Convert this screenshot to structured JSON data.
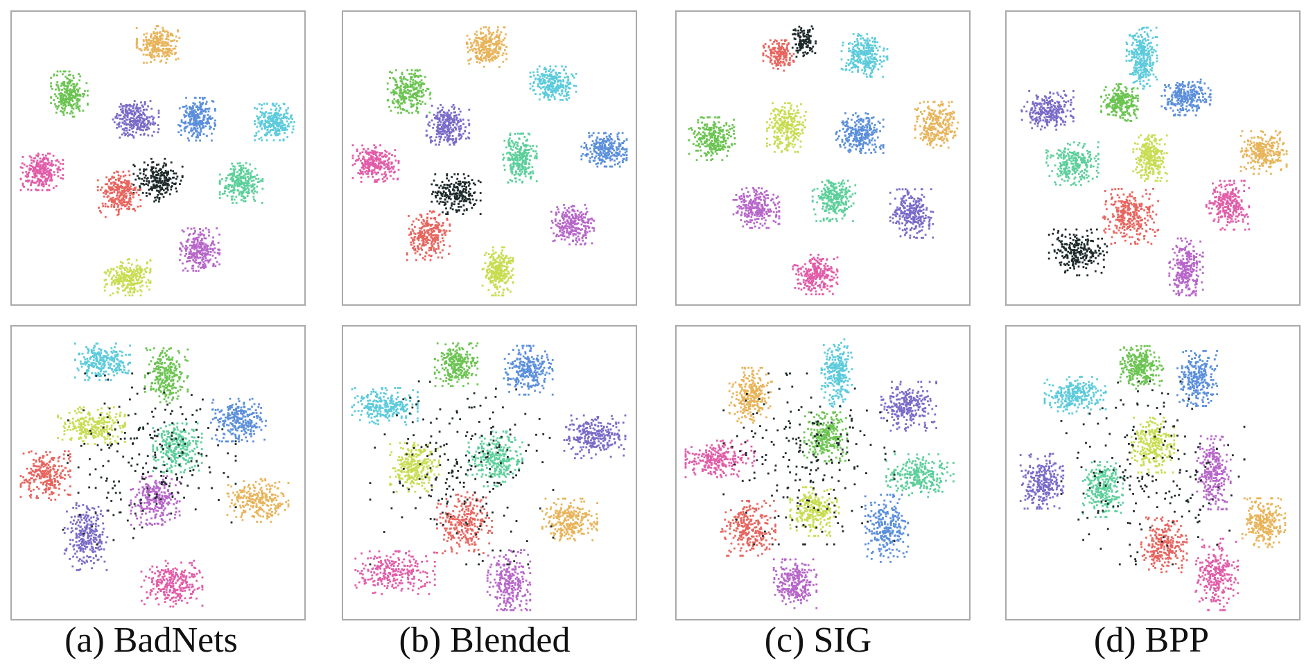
{
  "figure": {
    "captions": [
      "(a) BadNets",
      "(b) Blended",
      "(c) SIG",
      "(d) BPP"
    ]
  },
  "chart_data": {
    "type": "scatter",
    "description_rows": [
      "top",
      "bottom"
    ],
    "palette": {
      "red": "#e8655f",
      "orange": "#e8b45a",
      "lime": "#c8dd52",
      "green": "#6cc452",
      "teal": "#5dcf9b",
      "cyan": "#5ccbdb",
      "blue": "#5b8fdb",
      "purple": "#7a6bc8",
      "violet": "#b766c9",
      "pink": "#e15ca8",
      "black": "#1f2a2a"
    },
    "panels": [
      {
        "name": "badnets-top",
        "col": 0,
        "row": 0,
        "xlim": [
          0,
          100
        ],
        "ylim": [
          0,
          100
        ],
        "clusters": [
          {
            "color": "orange",
            "cx": 50,
            "cy": 91,
            "rx": 7,
            "ry": 6,
            "n": 260
          },
          {
            "color": "green",
            "cx": 18,
            "cy": 73,
            "rx": 6,
            "ry": 7.5,
            "n": 260
          },
          {
            "color": "purple",
            "cx": 42,
            "cy": 64,
            "rx": 7.5,
            "ry": 6,
            "n": 260
          },
          {
            "color": "blue",
            "cx": 64,
            "cy": 64,
            "rx": 6,
            "ry": 7,
            "n": 260
          },
          {
            "color": "cyan",
            "cx": 92,
            "cy": 63,
            "rx": 6.5,
            "ry": 6,
            "n": 260
          },
          {
            "color": "pink",
            "cx": 8,
            "cy": 45,
            "rx": 7,
            "ry": 6,
            "n": 260
          },
          {
            "color": "black",
            "cx": 50,
            "cy": 42,
            "rx": 8,
            "ry": 7,
            "n": 220
          },
          {
            "color": "red",
            "cx": 36,
            "cy": 37,
            "rx": 7,
            "ry": 7.5,
            "n": 260
          },
          {
            "color": "teal",
            "cx": 80,
            "cy": 41,
            "rx": 7,
            "ry": 6.5,
            "n": 260
          },
          {
            "color": "violet",
            "cx": 65,
            "cy": 17,
            "rx": 6.5,
            "ry": 7,
            "n": 260
          },
          {
            "color": "lime",
            "cx": 39,
            "cy": 7,
            "rx": 7.5,
            "ry": 6,
            "n": 260
          }
        ]
      },
      {
        "name": "blended-top",
        "col": 1,
        "row": 0,
        "xlim": [
          0,
          100
        ],
        "ylim": [
          0,
          100
        ],
        "clusters": [
          {
            "color": "orange",
            "cx": 49,
            "cy": 90,
            "rx": 6.5,
            "ry": 6.5,
            "n": 260
          },
          {
            "color": "green",
            "cx": 21,
            "cy": 74,
            "rx": 7,
            "ry": 7,
            "n": 260
          },
          {
            "color": "cyan",
            "cx": 73,
            "cy": 77,
            "rx": 7.5,
            "ry": 5.5,
            "n": 260
          },
          {
            "color": "purple",
            "cx": 35,
            "cy": 62,
            "rx": 7,
            "ry": 6.5,
            "n": 260
          },
          {
            "color": "teal",
            "cx": 61,
            "cy": 50,
            "rx": 5.5,
            "ry": 8,
            "n": 260
          },
          {
            "color": "blue",
            "cx": 92,
            "cy": 53,
            "rx": 8,
            "ry": 5.5,
            "n": 260
          },
          {
            "color": "pink",
            "cx": 9,
            "cy": 48,
            "rx": 7.5,
            "ry": 6,
            "n": 260
          },
          {
            "color": "black",
            "cx": 38,
            "cy": 37,
            "rx": 8,
            "ry": 6.5,
            "n": 220
          },
          {
            "color": "red",
            "cx": 28,
            "cy": 22,
            "rx": 7,
            "ry": 8,
            "n": 260
          },
          {
            "color": "violet",
            "cx": 80,
            "cy": 26,
            "rx": 7,
            "ry": 6.5,
            "n": 260
          },
          {
            "color": "lime",
            "cx": 53,
            "cy": 9,
            "rx": 5,
            "ry": 8,
            "n": 260
          }
        ]
      },
      {
        "name": "sig-top",
        "col": 2,
        "row": 0,
        "xlim": [
          0,
          100
        ],
        "ylim": [
          0,
          100
        ],
        "clusters": [
          {
            "color": "black",
            "cx": 43,
            "cy": 92,
            "rx": 4,
            "ry": 5,
            "n": 120
          },
          {
            "color": "red",
            "cx": 34,
            "cy": 87,
            "rx": 5,
            "ry": 5,
            "n": 160
          },
          {
            "color": "cyan",
            "cx": 65,
            "cy": 87,
            "rx": 7.5,
            "ry": 7,
            "n": 260
          },
          {
            "color": "green",
            "cx": 10,
            "cy": 57,
            "rx": 7.5,
            "ry": 7,
            "n": 260
          },
          {
            "color": "lime",
            "cx": 37,
            "cy": 61,
            "rx": 6.5,
            "ry": 8,
            "n": 260
          },
          {
            "color": "blue",
            "cx": 63,
            "cy": 59,
            "rx": 8,
            "ry": 6.5,
            "n": 260
          },
          {
            "color": "orange",
            "cx": 91,
            "cy": 62,
            "rx": 7,
            "ry": 7.5,
            "n": 260
          },
          {
            "color": "violet",
            "cx": 26,
            "cy": 32,
            "rx": 7.5,
            "ry": 6.5,
            "n": 260
          },
          {
            "color": "teal",
            "cx": 54,
            "cy": 35,
            "rx": 7,
            "ry": 7,
            "n": 260
          },
          {
            "color": "purple",
            "cx": 82,
            "cy": 30,
            "rx": 7,
            "ry": 8,
            "n": 260
          },
          {
            "color": "pink",
            "cx": 47,
            "cy": 8,
            "rx": 7.5,
            "ry": 6.5,
            "n": 260
          }
        ]
      },
      {
        "name": "bpp-top",
        "col": 3,
        "row": 0,
        "xlim": [
          0,
          100
        ],
        "ylim": [
          0,
          100
        ],
        "clusters": [
          {
            "color": "cyan",
            "cx": 46,
            "cy": 86,
            "rx": 5,
            "ry": 10,
            "n": 300
          },
          {
            "color": "green",
            "cx": 38,
            "cy": 70,
            "rx": 6,
            "ry": 6,
            "n": 260
          },
          {
            "color": "blue",
            "cx": 62,
            "cy": 72,
            "rx": 8,
            "ry": 6,
            "n": 260
          },
          {
            "color": "purple",
            "cx": 12,
            "cy": 67,
            "rx": 8.5,
            "ry": 6.5,
            "n": 260
          },
          {
            "color": "teal",
            "cx": 21,
            "cy": 48,
            "rx": 8.5,
            "ry": 7,
            "n": 260
          },
          {
            "color": "lime",
            "cx": 49,
            "cy": 50,
            "rx": 5.5,
            "ry": 7.5,
            "n": 260
          },
          {
            "color": "orange",
            "cx": 90,
            "cy": 52,
            "rx": 7.5,
            "ry": 7,
            "n": 260
          },
          {
            "color": "red",
            "cx": 42,
            "cy": 29,
            "rx": 9,
            "ry": 9,
            "n": 300
          },
          {
            "color": "pink",
            "cx": 77,
            "cy": 33,
            "rx": 7,
            "ry": 8,
            "n": 260
          },
          {
            "color": "black",
            "cx": 23,
            "cy": 16,
            "rx": 9.5,
            "ry": 7.5,
            "n": 240
          },
          {
            "color": "violet",
            "cx": 62,
            "cy": 10,
            "rx": 5.5,
            "ry": 10,
            "n": 260
          }
        ]
      },
      {
        "name": "badnets-bottom",
        "col": 0,
        "row": 1,
        "xlim": [
          0,
          100
        ],
        "ylim": [
          0,
          100
        ],
        "clusters": [
          {
            "color": "cyan",
            "cx": 30,
            "cy": 90,
            "rx": 9,
            "ry": 6,
            "n": 260
          },
          {
            "color": "green",
            "cx": 53,
            "cy": 85,
            "rx": 7,
            "ry": 9,
            "n": 260
          },
          {
            "color": "blue",
            "cx": 79,
            "cy": 69,
            "rx": 9,
            "ry": 7,
            "n": 260
          },
          {
            "color": "lime",
            "cx": 26,
            "cy": 67,
            "rx": 11,
            "ry": 6,
            "n": 260
          },
          {
            "color": "teal",
            "cx": 57,
            "cy": 59,
            "rx": 8,
            "ry": 8,
            "n": 260
          },
          {
            "color": "red",
            "cx": 9,
            "cy": 49,
            "rx": 8.5,
            "ry": 8,
            "n": 260
          },
          {
            "color": "violet",
            "cx": 49,
            "cy": 40,
            "rx": 8,
            "ry": 8,
            "n": 260
          },
          {
            "color": "orange",
            "cx": 86,
            "cy": 40,
            "rx": 10,
            "ry": 7,
            "n": 260
          },
          {
            "color": "purple",
            "cx": 24,
            "cy": 27,
            "rx": 7,
            "ry": 11,
            "n": 260
          },
          {
            "color": "pink",
            "cx": 55,
            "cy": 10,
            "rx": 10,
            "ry": 7.5,
            "n": 260
          },
          {
            "color": "black",
            "cx": 45,
            "cy": 55,
            "rx": 30,
            "ry": 28,
            "n": 220
          }
        ]
      },
      {
        "name": "blended-bottom",
        "col": 1,
        "row": 1,
        "xlim": [
          0,
          100
        ],
        "ylim": [
          0,
          100
        ],
        "clusters": [
          {
            "color": "green",
            "cx": 38,
            "cy": 89,
            "rx": 7,
            "ry": 7,
            "n": 260
          },
          {
            "color": "blue",
            "cx": 64,
            "cy": 87,
            "rx": 8,
            "ry": 8,
            "n": 260
          },
          {
            "color": "cyan",
            "cx": 12,
            "cy": 74,
            "rx": 11,
            "ry": 6,
            "n": 260
          },
          {
            "color": "purple",
            "cx": 88,
            "cy": 63,
            "rx": 10,
            "ry": 7,
            "n": 260
          },
          {
            "color": "lime",
            "cx": 23,
            "cy": 52,
            "rx": 8,
            "ry": 8,
            "n": 260
          },
          {
            "color": "teal",
            "cx": 52,
            "cy": 55,
            "rx": 9,
            "ry": 9,
            "n": 260
          },
          {
            "color": "red",
            "cx": 41,
            "cy": 32,
            "rx": 9,
            "ry": 10,
            "n": 260
          },
          {
            "color": "orange",
            "cx": 79,
            "cy": 33,
            "rx": 9,
            "ry": 7,
            "n": 260
          },
          {
            "color": "pink",
            "cx": 16,
            "cy": 14,
            "rx": 13,
            "ry": 7,
            "n": 260
          },
          {
            "color": "violet",
            "cx": 57,
            "cy": 10,
            "rx": 7,
            "ry": 11,
            "n": 260
          },
          {
            "color": "black",
            "cx": 40,
            "cy": 50,
            "rx": 30,
            "ry": 30,
            "n": 220
          }
        ]
      },
      {
        "name": "sig-bottom",
        "col": 2,
        "row": 1,
        "xlim": [
          0,
          100
        ],
        "ylim": [
          0,
          100
        ],
        "clusters": [
          {
            "color": "cyan",
            "cx": 55,
            "cy": 86,
            "rx": 5,
            "ry": 11,
            "n": 260
          },
          {
            "color": "orange",
            "cx": 24,
            "cy": 78,
            "rx": 7,
            "ry": 9,
            "n": 260
          },
          {
            "color": "purple",
            "cx": 81,
            "cy": 74,
            "rx": 9,
            "ry": 8,
            "n": 260
          },
          {
            "color": "green",
            "cx": 51,
            "cy": 63,
            "rx": 7,
            "ry": 8,
            "n": 260
          },
          {
            "color": "pink",
            "cx": 12,
            "cy": 55,
            "rx": 12,
            "ry": 6,
            "n": 260
          },
          {
            "color": "teal",
            "cx": 85,
            "cy": 49,
            "rx": 11,
            "ry": 7,
            "n": 260
          },
          {
            "color": "lime",
            "cx": 47,
            "cy": 36,
            "rx": 8,
            "ry": 8,
            "n": 260
          },
          {
            "color": "blue",
            "cx": 73,
            "cy": 30,
            "rx": 7,
            "ry": 11,
            "n": 260
          },
          {
            "color": "red",
            "cx": 23,
            "cy": 30,
            "rx": 9,
            "ry": 9,
            "n": 260
          },
          {
            "color": "violet",
            "cx": 40,
            "cy": 10,
            "rx": 7,
            "ry": 8,
            "n": 260
          },
          {
            "color": "black",
            "cx": 45,
            "cy": 55,
            "rx": 28,
            "ry": 28,
            "n": 220
          }
        ]
      },
      {
        "name": "bpp-bottom",
        "col": 3,
        "row": 1,
        "xlim": [
          0,
          100
        ],
        "ylim": [
          0,
          100
        ],
        "clusters": [
          {
            "color": "green",
            "cx": 46,
            "cy": 88,
            "rx": 7,
            "ry": 7,
            "n": 260
          },
          {
            "color": "blue",
            "cx": 66,
            "cy": 84,
            "rx": 6.5,
            "ry": 9,
            "n": 260
          },
          {
            "color": "cyan",
            "cx": 22,
            "cy": 78,
            "rx": 10,
            "ry": 6,
            "n": 260
          },
          {
            "color": "lime",
            "cx": 50,
            "cy": 60,
            "rx": 7,
            "ry": 9,
            "n": 260
          },
          {
            "color": "purple",
            "cx": 10,
            "cy": 47,
            "rx": 7,
            "ry": 9,
            "n": 260
          },
          {
            "color": "teal",
            "cx": 32,
            "cy": 44,
            "rx": 6.5,
            "ry": 9,
            "n": 260
          },
          {
            "color": "violet",
            "cx": 72,
            "cy": 50,
            "rx": 5.5,
            "ry": 12,
            "n": 260
          },
          {
            "color": "orange",
            "cx": 90,
            "cy": 32,
            "rx": 7,
            "ry": 8,
            "n": 260
          },
          {
            "color": "red",
            "cx": 54,
            "cy": 24,
            "rx": 7.5,
            "ry": 9,
            "n": 260
          },
          {
            "color": "pink",
            "cx": 73,
            "cy": 13,
            "rx": 7,
            "ry": 12,
            "n": 260
          },
          {
            "color": "black",
            "cx": 50,
            "cy": 50,
            "rx": 30,
            "ry": 30,
            "n": 200
          }
        ]
      }
    ]
  }
}
